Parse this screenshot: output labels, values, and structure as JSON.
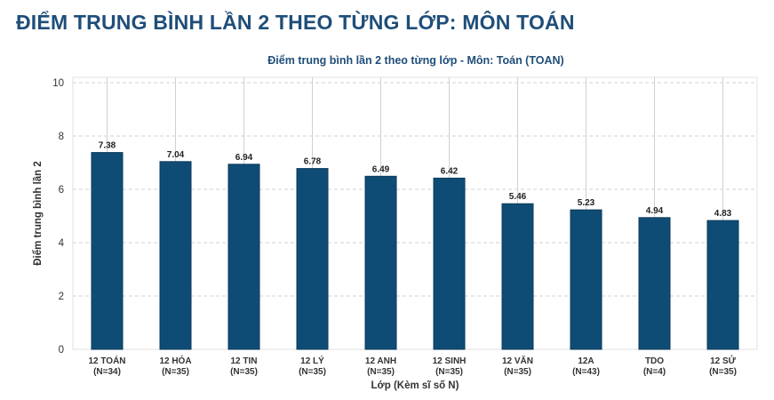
{
  "page": {
    "heading": "ĐIỂM TRUNG BÌNH LẦN 2 THEO TỪNG LỚP: MÔN TOÁN"
  },
  "colors": {
    "bar": "#0f4c75",
    "title": "#1f4e79",
    "grid": "#d0d0d0"
  },
  "chart_data": {
    "type": "bar",
    "title": "Điểm trung bình lần 2 theo từng lớp - Môn: Toán (TOAN)",
    "xlabel": "Lớp (Kèm sĩ số N)",
    "ylabel": "Điểm trung bình lần 2",
    "ylim": [
      0,
      10.2
    ],
    "yticks": [
      0,
      2,
      4,
      6,
      8,
      10
    ],
    "grid": true,
    "categories": [
      {
        "name": "12 TOÁN",
        "n": "(N=34)"
      },
      {
        "name": "12 HÓA",
        "n": "(N=35)"
      },
      {
        "name": "12 TIN",
        "n": "(N=35)"
      },
      {
        "name": "12 LÝ",
        "n": "(N=35)"
      },
      {
        "name": "12 ANH",
        "n": "(N=35)"
      },
      {
        "name": "12 SINH",
        "n": "(N=35)"
      },
      {
        "name": "12 VĂN",
        "n": "(N=35)"
      },
      {
        "name": "12A",
        "n": "(N=43)"
      },
      {
        "name": "TDO",
        "n": "(N=4)"
      },
      {
        "name": "12 SỬ",
        "n": "(N=35)"
      }
    ],
    "values": [
      7.38,
      7.04,
      6.94,
      6.78,
      6.49,
      6.42,
      5.46,
      5.23,
      4.94,
      4.83
    ],
    "value_labels": [
      "7.38",
      "7.04",
      "6.94",
      "6.78",
      "6.49",
      "6.42",
      "5.46",
      "5.23",
      "4.94",
      "4.83"
    ]
  }
}
